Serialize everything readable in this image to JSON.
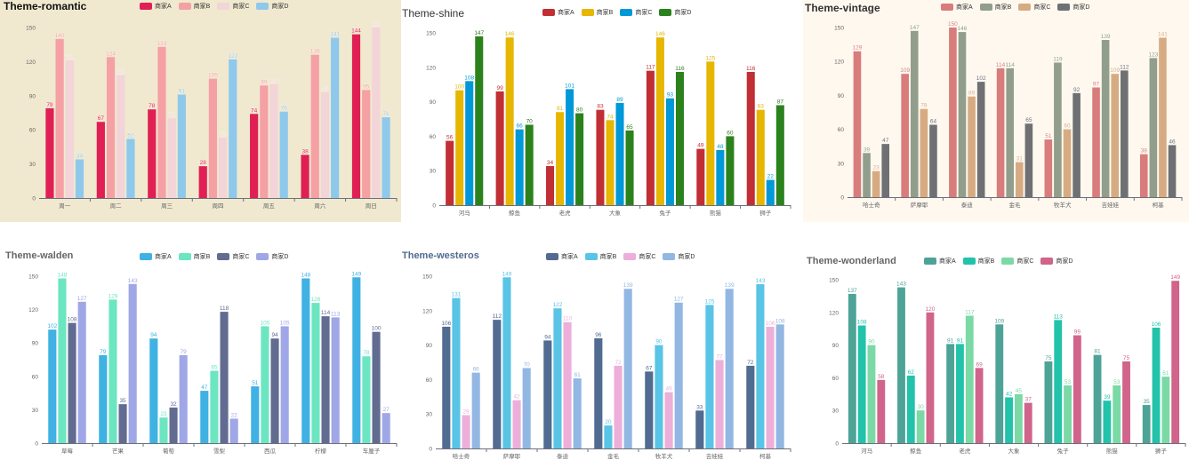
{
  "chart_data": [
    {
      "type": "bar",
      "title": "Theme-romantic",
      "legend": [
        "商家A",
        "商家B",
        "商家C",
        "商家D"
      ],
      "categories": [
        "周一",
        "周二",
        "周三",
        "周四",
        "周五",
        "周六",
        "周日"
      ],
      "series": [
        {
          "name": "商家A",
          "values": [
            79,
            67,
            78,
            28,
            74,
            38,
            144
          ]
        },
        {
          "name": "商家B",
          "values": [
            140,
            124,
            133,
            105,
            99,
            126,
            95
          ]
        },
        {
          "name": "商家C",
          "values": [
            121,
            108,
            70,
            53,
            100,
            93,
            150
          ]
        },
        {
          "name": "商家D",
          "values": [
            34,
            52,
            91,
            122,
            76,
            141,
            71
          ]
        }
      ],
      "yticks": [
        "0",
        "30",
        "60",
        "90",
        "120",
        "150"
      ],
      "ylim": [
        0,
        150
      ],
      "colors": [
        "#e01f54",
        "#f5a0a5",
        "#f2d4d9",
        "#8ec9ec"
      ],
      "background": "#f0e9cf",
      "title_color": "#111111",
      "label_color": "#ffffff"
    },
    {
      "type": "bar",
      "title": "Theme-shine",
      "legend": [
        "商家A",
        "商家B",
        "商家C",
        "商家D"
      ],
      "categories": [
        "河马",
        "鲸鱼",
        "老虎",
        "大象",
        "兔子",
        "熊猫",
        "狮子"
      ],
      "series": [
        {
          "name": "商家A",
          "values": [
            56,
            99,
            34,
            83,
            117,
            49,
            116
          ]
        },
        {
          "name": "商家B",
          "values": [
            100,
            146,
            81,
            74,
            146,
            125,
            83
          ]
        },
        {
          "name": "商家C",
          "values": [
            108,
            66,
            101,
            89,
            93,
            48,
            22
          ]
        },
        {
          "name": "商家D",
          "values": [
            147,
            70,
            80,
            65,
            116,
            60,
            87
          ]
        }
      ],
      "yticks": [
        "0",
        "30",
        "60",
        "90",
        "120",
        "150"
      ],
      "ylim": [
        0,
        150
      ],
      "colors": [
        "#c12e34",
        "#e6b600",
        "#0098d9",
        "#2b821d"
      ],
      "background": "#ffffff",
      "title_color": "#333333",
      "label_color": "#ffffff"
    },
    {
      "type": "bar",
      "title": "Theme-vintage",
      "legend": [
        "商家A",
        "商家B",
        "商家C",
        "商家D"
      ],
      "categories": [
        "哈士奇",
        "萨摩耶",
        "泰迪",
        "金毛",
        "牧羊犬",
        "吉娃娃",
        "柯基"
      ],
      "series": [
        {
          "name": "商家A",
          "values": [
            129,
            109,
            150,
            114,
            51,
            97,
            38
          ]
        },
        {
          "name": "商家B",
          "values": [
            39,
            147,
            146,
            114,
            119,
            139,
            123
          ]
        },
        {
          "name": "商家C",
          "values": [
            23,
            78,
            89,
            31,
            60,
            109,
            141
          ]
        },
        {
          "name": "商家D",
          "values": [
            47,
            64,
            102,
            65,
            92,
            112,
            46
          ]
        }
      ],
      "yticks": [
        "0",
        "30",
        "60",
        "90",
        "120",
        "150"
      ],
      "ylim": [
        0,
        150
      ],
      "colors": [
        "#d87c7c",
        "#919e8b",
        "#d7ab82",
        "#6e7074"
      ],
      "background": "#fef8ef",
      "title_color": "#333333",
      "label_color": "#ffffff"
    },
    {
      "type": "bar",
      "title": "Theme-walden",
      "legend": [
        "商家A",
        "商家B",
        "商家C",
        "商家D"
      ],
      "categories": [
        "草莓",
        "芒果",
        "葡萄",
        "雪梨",
        "西瓜",
        "柠檬",
        "车厘子"
      ],
      "series": [
        {
          "name": "商家A",
          "values": [
            102,
            79,
            94,
            47,
            51,
            148,
            149
          ]
        },
        {
          "name": "商家B",
          "values": [
            148,
            129,
            23,
            65,
            105,
            126,
            78
          ]
        },
        {
          "name": "商家C",
          "values": [
            108,
            35,
            32,
            118,
            94,
            114,
            100
          ]
        },
        {
          "name": "商家D",
          "values": [
            127,
            143,
            79,
            22,
            105,
            113,
            27
          ]
        }
      ],
      "yticks": [
        "0",
        "30",
        "60",
        "90",
        "120",
        "150"
      ],
      "ylim": [
        0,
        150
      ],
      "colors": [
        "#3fb1e3",
        "#6be6c1",
        "#626c91",
        "#a0a7e6"
      ],
      "background": "#ffffff",
      "title_color": "#666666",
      "label_color": "#ffffff"
    },
    {
      "type": "bar",
      "title": "Theme-westeros",
      "legend": [
        "商家A",
        "商家B",
        "商家C",
        "商家D"
      ],
      "categories": [
        "哈士奇",
        "萨摩耶",
        "泰迪",
        "金毛",
        "牧羊犬",
        "吉娃娃",
        "柯基"
      ],
      "series": [
        {
          "name": "商家A",
          "values": [
            106,
            112,
            94,
            96,
            67,
            33,
            72
          ]
        },
        {
          "name": "商家B",
          "values": [
            131,
            149,
            122,
            20,
            90,
            125,
            143
          ]
        },
        {
          "name": "商家C",
          "values": [
            29,
            42,
            110,
            72,
            49,
            77,
            106
          ]
        },
        {
          "name": "商家D",
          "values": [
            66,
            70,
            61,
            139,
            127,
            139,
            108
          ]
        }
      ],
      "yticks": [
        "0",
        "30",
        "60",
        "90",
        "120",
        "150"
      ],
      "ylim": [
        0,
        150
      ],
      "colors": [
        "#516b91",
        "#59c4e6",
        "#edafda",
        "#93b7e3"
      ],
      "background": "#ffffff",
      "title_color": "#516b91",
      "label_color": "#ffffff"
    },
    {
      "type": "bar",
      "title": "Theme-wonderland",
      "legend": [
        "商家A",
        "商家B",
        "商家C",
        "商家D"
      ],
      "categories": [
        "河马",
        "鲸鱼",
        "老虎",
        "大象",
        "兔子",
        "熊猫",
        "狮子"
      ],
      "series": [
        {
          "name": "商家A",
          "values": [
            137,
            143,
            91,
            109,
            75,
            81,
            35
          ]
        },
        {
          "name": "商家B",
          "values": [
            108,
            62,
            91,
            42,
            113,
            39,
            106
          ]
        },
        {
          "name": "商家C",
          "values": [
            90,
            30,
            117,
            45,
            53,
            53,
            61
          ]
        },
        {
          "name": "商家D",
          "values": [
            58,
            120,
            69,
            37,
            99,
            75,
            149
          ]
        }
      ],
      "yticks": [
        "0",
        "30",
        "60",
        "90",
        "120",
        "150"
      ],
      "ylim": [
        0,
        150
      ],
      "colors": [
        "#4ea397",
        "#22c3aa",
        "#7bd9a5",
        "#d0648a"
      ],
      "background": "#ffffff",
      "title_color": "#666666",
      "label_color": "#ffffff"
    }
  ]
}
